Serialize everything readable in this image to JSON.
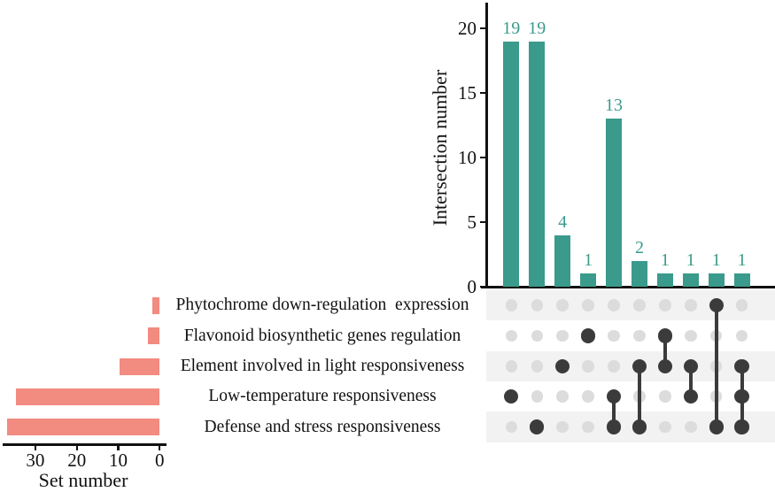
{
  "chart_data": {
    "type": "upset",
    "intersection_bar": {
      "ylabel": "Intersection number",
      "yticks": [
        0,
        5,
        10,
        15,
        20
      ],
      "ylim": [
        0,
        22
      ],
      "values": [
        19,
        19,
        4,
        1,
        13,
        2,
        1,
        1,
        1,
        1
      ],
      "bar_color": "#3A9A8C",
      "value_label_color": "#3A9A8C",
      "grid": false
    },
    "set_size_bar": {
      "xlabel": "Set number",
      "xticks": [
        30,
        20,
        10,
        0
      ],
      "xlim": [
        38,
        0
      ],
      "axis_note": "horizontal axis reversed, 0 at right",
      "bar_color": "#F28B80",
      "values": [
        1,
        2,
        9,
        34,
        36
      ]
    },
    "sets": [
      {
        "label": "Phytochrome down-regulation  expression",
        "size": 1
      },
      {
        "label": "Flavonoid biosynthetic genes regulation",
        "size": 2
      },
      {
        "label": "Element involved in light responsiveness",
        "size": 9
      },
      {
        "label": "Low-temperature responsiveness",
        "size": 34
      },
      {
        "label": "Defense and stress responsiveness",
        "size": 36
      }
    ],
    "intersections": [
      {
        "member_rows": [
          3
        ],
        "sets": [
          "Low-temperature responsiveness"
        ],
        "value": 19
      },
      {
        "member_rows": [
          4
        ],
        "sets": [
          "Defense and stress responsiveness"
        ],
        "value": 19
      },
      {
        "member_rows": [
          2
        ],
        "sets": [
          "Element involved in light responsiveness"
        ],
        "value": 4
      },
      {
        "member_rows": [
          1
        ],
        "sets": [
          "Flavonoid biosynthetic genes regulation"
        ],
        "value": 1
      },
      {
        "member_rows": [
          3,
          4
        ],
        "sets": [
          "Low-temperature responsiveness",
          "Defense and stress responsiveness"
        ],
        "value": 13
      },
      {
        "member_rows": [
          2,
          4
        ],
        "sets": [
          "Element involved in light responsiveness",
          "Defense and stress responsiveness"
        ],
        "value": 2
      },
      {
        "member_rows": [
          1,
          2
        ],
        "sets": [
          "Flavonoid biosynthetic genes regulation",
          "Element involved in light responsiveness"
        ],
        "value": 1
      },
      {
        "member_rows": [
          2,
          3
        ],
        "sets": [
          "Element involved in light responsiveness",
          "Low-temperature responsiveness"
        ],
        "value": 1
      },
      {
        "member_rows": [
          0,
          4
        ],
        "sets": [
          "Phytochrome down-regulation  expression",
          "Defense and stress responsiveness"
        ],
        "value": 1
      },
      {
        "member_rows": [
          2,
          3,
          4
        ],
        "sets": [
          "Element involved in light responsiveness",
          "Low-temperature responsiveness",
          "Defense and stress responsiveness"
        ],
        "value": 1
      }
    ],
    "matrix": {
      "active_dot_color": "#3B3B3B",
      "inactive_dot_color": "#DCDCDC",
      "connector_color": "#3B3B3B",
      "stripe_color": "#F2F2F2",
      "striped_rows": [
        0,
        2,
        4
      ]
    },
    "axis_color": "#111111"
  }
}
